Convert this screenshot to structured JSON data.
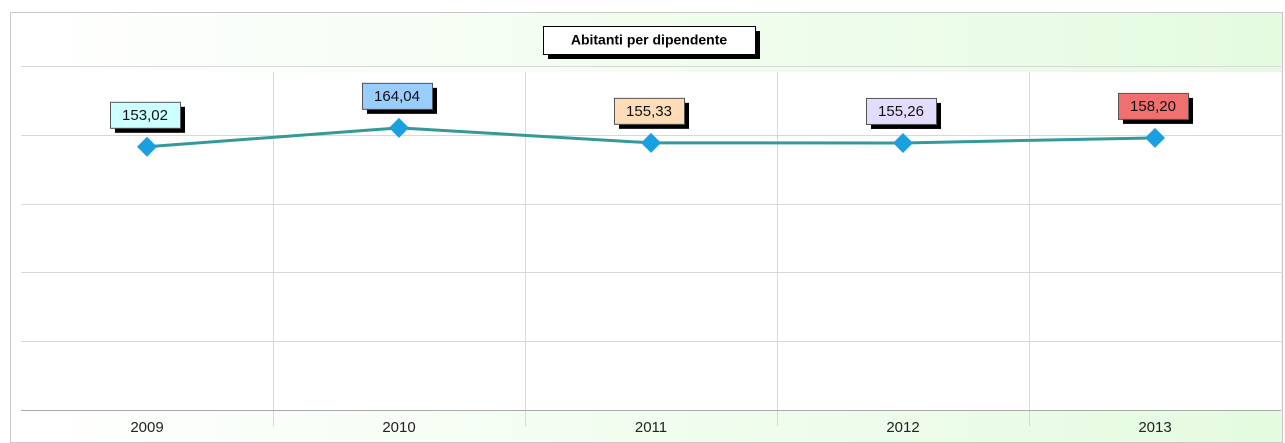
{
  "chart_data": {
    "type": "line",
    "title": "Abitanti per dipendente",
    "categories": [
      "2009",
      "2010",
      "2011",
      "2012",
      "2013"
    ],
    "series": [
      {
        "name": "Abitanti per dipendente",
        "color": "#339999",
        "marker_color": "#1a9fe0",
        "values": [
          153.02,
          164.04,
          155.33,
          155.26,
          158.2
        ],
        "value_labels": [
          "153,02",
          "164,04",
          "155,33",
          "155,26",
          "158,20"
        ]
      }
    ],
    "label_colors": [
      "#ccffff",
      "#99ccff",
      "#ffdcb8",
      "#e4dcff",
      "#f07070"
    ],
    "ylim": [
      0,
      200
    ],
    "yticks": [
      0,
      40,
      80,
      120,
      160,
      200
    ],
    "grid": true
  }
}
